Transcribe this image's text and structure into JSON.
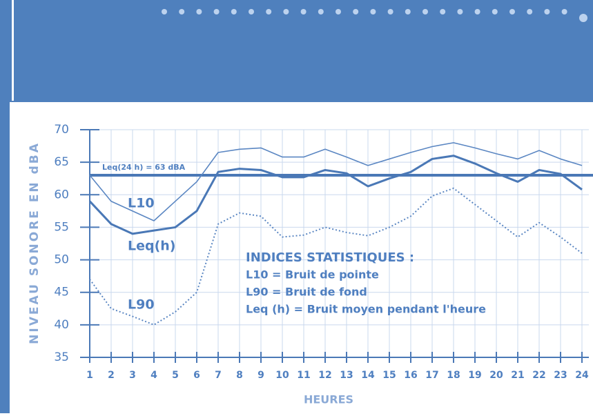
{
  "chart_data": {
    "type": "line",
    "y_label": "NIVEAU SONORE EN dBA",
    "x_label": "HEURES",
    "x": [
      1,
      2,
      3,
      4,
      5,
      6,
      7,
      8,
      9,
      10,
      11,
      12,
      13,
      14,
      15,
      16,
      17,
      18,
      19,
      20,
      21,
      22,
      23,
      24
    ],
    "xlim": [
      1,
      24
    ],
    "xticks": [
      1,
      2,
      3,
      4,
      5,
      6,
      7,
      8,
      9,
      10,
      11,
      12,
      13,
      14,
      15,
      16,
      17,
      18,
      19,
      20,
      21,
      22,
      23,
      24
    ],
    "ylim": [
      35,
      70
    ],
    "yticks": [
      35,
      40,
      45,
      50,
      55,
      60,
      65,
      70
    ],
    "grid": true,
    "reference_line": {
      "label": "Leq(24 h) = 63 dBA",
      "value": 63,
      "color": "#4a78b6"
    },
    "series": [
      {
        "name": "L10",
        "color": "#5a86c2",
        "line_style": "solid",
        "line_width": 1.6,
        "values": [
          63,
          59,
          57.5,
          56,
          59,
          62,
          66.5,
          67,
          67.2,
          65.8,
          65.8,
          67,
          65.8,
          64.5,
          65.5,
          66.5,
          67.4,
          68,
          67.2,
          66.3,
          65.5,
          66.8,
          65.5,
          64.5
        ]
      },
      {
        "name": "Leq(h)",
        "color": "#4a78b6",
        "line_style": "solid",
        "line_width": 3,
        "values": [
          59,
          55.5,
          54,
          54.5,
          55,
          57.5,
          63.5,
          64,
          63.8,
          62.7,
          62.7,
          63.8,
          63.3,
          61.3,
          62.5,
          63.5,
          65.5,
          66,
          64.8,
          63.3,
          62,
          63.8,
          63.2,
          60.8
        ]
      },
      {
        "name": "L90",
        "color": "#5a86c2",
        "line_style": "dotted",
        "line_width": 2,
        "values": [
          47,
          42.5,
          41.3,
          40,
          42,
          45,
          55.5,
          57.2,
          56.7,
          53.5,
          53.8,
          55,
          54.2,
          53.7,
          55,
          56.7,
          59.8,
          61,
          58.5,
          56,
          53.5,
          55.7,
          53.5,
          51
        ]
      }
    ],
    "annotations": [
      "INDICES STATISTIQUES :",
      "L10 = Bruit de pointe",
      "L90 = Bruit de fond",
      "Leq (h) = Bruit moyen pendant l'heure"
    ]
  }
}
